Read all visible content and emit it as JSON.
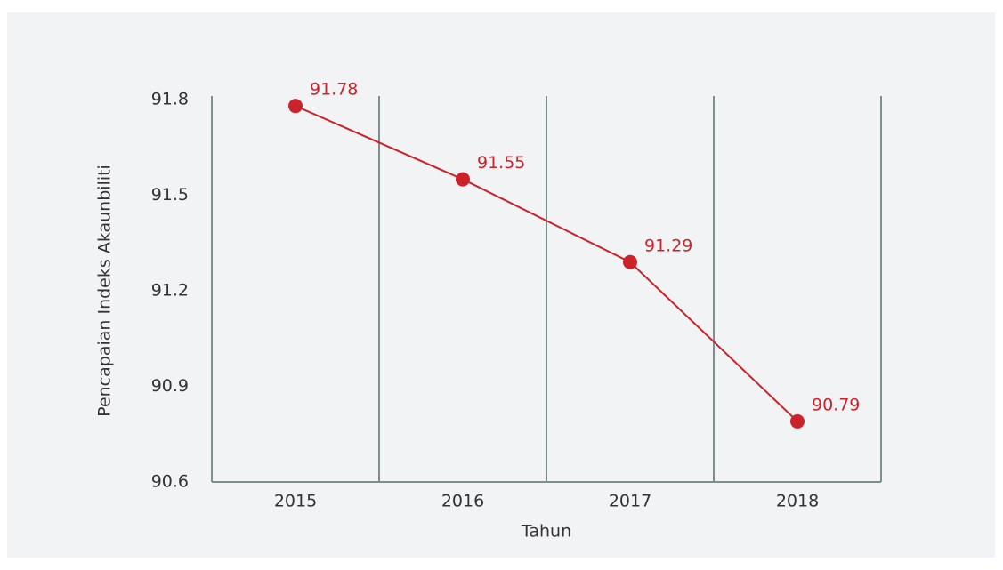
{
  "chart_data": {
    "type": "line",
    "x_label": "Tahun",
    "y_label": "Pencapaian Indeks Akaunbiliti",
    "categories": [
      "2015",
      "2016",
      "2017",
      "2018"
    ],
    "values": [
      91.78,
      91.55,
      91.29,
      90.79
    ],
    "color": "#cc2229",
    "ylim": [
      90.6,
      91.8
    ],
    "yticks": [
      90.6,
      90.9,
      91.2,
      91.5,
      91.8
    ],
    "grid": true
  }
}
